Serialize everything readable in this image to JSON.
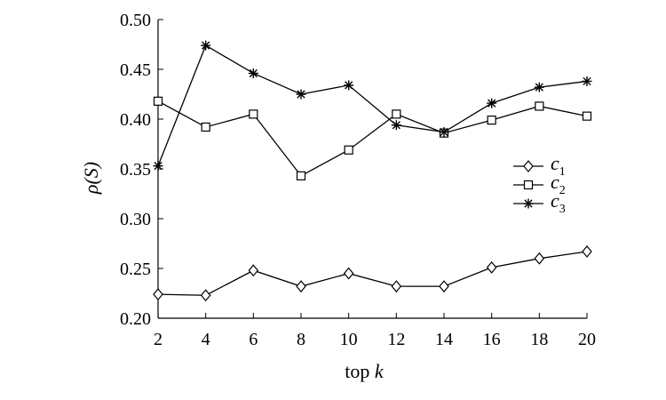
{
  "chart_data": {
    "type": "line",
    "xlabel": "top k",
    "ylabel": "ρ(S)",
    "x": [
      2,
      4,
      6,
      8,
      10,
      12,
      14,
      16,
      18,
      20
    ],
    "xticks": [
      "2",
      "4",
      "6",
      "8",
      "10",
      "12",
      "14",
      "16",
      "18",
      "20"
    ],
    "yticks": [
      "0.20",
      "0.25",
      "0.30",
      "0.35",
      "0.40",
      "0.45",
      "0.50"
    ],
    "xlim": [
      2,
      20
    ],
    "ylim": [
      0.2,
      0.5
    ],
    "grid": false,
    "legend_position": "right",
    "series": [
      {
        "name": "c1",
        "marker": "diamond",
        "values": [
          0.224,
          0.223,
          0.248,
          0.232,
          0.245,
          0.232,
          0.232,
          0.251,
          0.26,
          0.267
        ]
      },
      {
        "name": "c2",
        "marker": "square",
        "values": [
          0.418,
          0.392,
          0.405,
          0.343,
          0.369,
          0.405,
          0.386,
          0.399,
          0.413,
          0.403
        ]
      },
      {
        "name": "c3",
        "marker": "asterisk",
        "values": [
          0.353,
          0.474,
          0.446,
          0.425,
          0.434,
          0.394,
          0.387,
          0.416,
          0.432,
          0.438
        ]
      }
    ]
  }
}
